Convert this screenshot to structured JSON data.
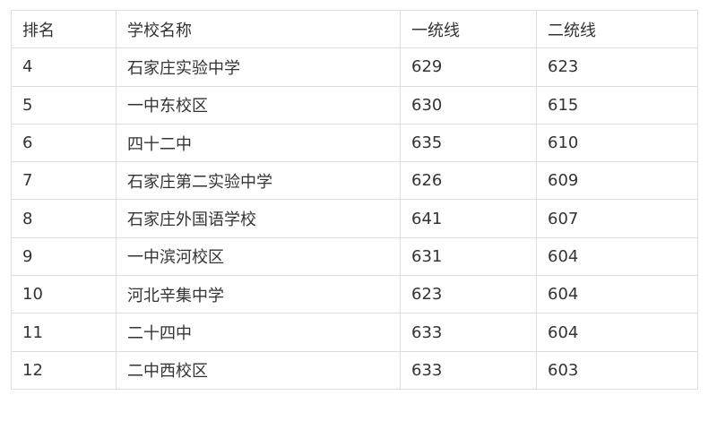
{
  "headers": [
    "排名",
    "学校名称",
    "一统线",
    "二统线"
  ],
  "rows": [
    [
      "4",
      "石家庄实验中学",
      "629",
      "623"
    ],
    [
      "5",
      "一中东校区",
      "630",
      "615"
    ],
    [
      "6",
      "四十二中",
      "635",
      "610"
    ],
    [
      "7",
      "石家庄第二实验中学",
      "626",
      "609"
    ],
    [
      "8",
      "石家庄外国语学校",
      "641",
      "607"
    ],
    [
      "9",
      "一中滨河校区",
      "631",
      "604"
    ],
    [
      "10",
      "河北辛集中学",
      "623",
      "604"
    ],
    [
      "11",
      "二十四中",
      "633",
      "604"
    ],
    [
      "12",
      "二中西校区",
      "633",
      "603"
    ]
  ]
}
